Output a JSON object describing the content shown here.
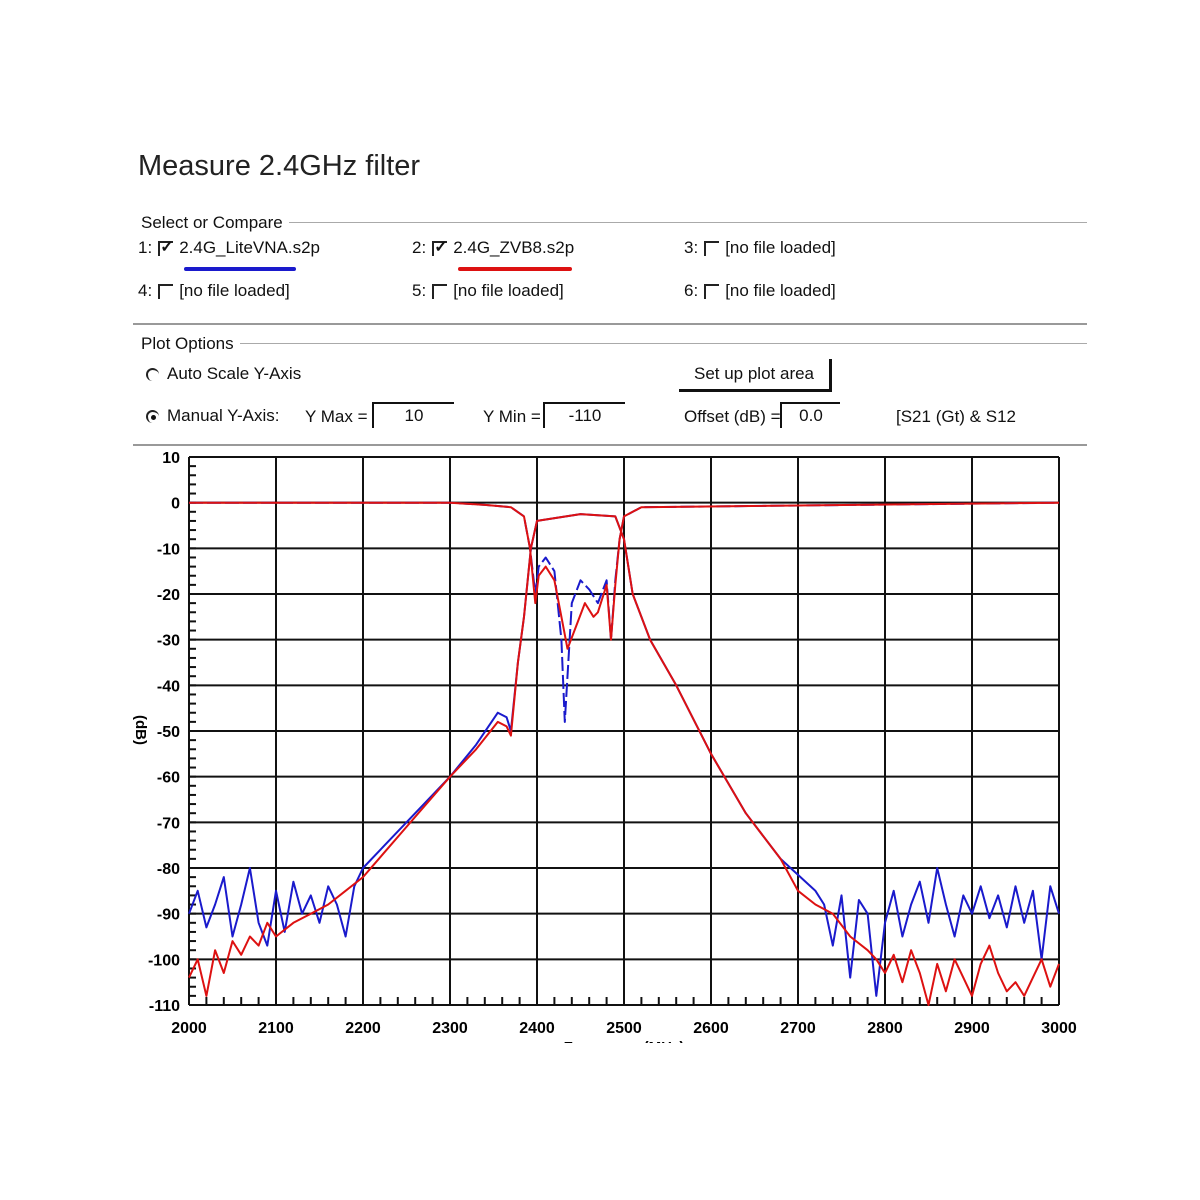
{
  "title": "Measure 2.4GHz filter",
  "select_group": {
    "label": "Select or Compare",
    "slots": [
      {
        "index": "1:",
        "checked": true,
        "file": "2.4G_LiteVNA.s2p",
        "color": "#1a1acc"
      },
      {
        "index": "2:",
        "checked": true,
        "file": "2.4G_ZVB8.s2p",
        "color": "#dd1111"
      },
      {
        "index": "3:",
        "checked": false,
        "file": "[no file loaded]"
      },
      {
        "index": "4:",
        "checked": false,
        "file": "[no file loaded]"
      },
      {
        "index": "5:",
        "checked": false,
        "file": "[no file loaded]"
      },
      {
        "index": "6:",
        "checked": false,
        "file": "[no file loaded]"
      }
    ]
  },
  "plot_options": {
    "label": "Plot Options",
    "auto_scale_label": "Auto Scale Y-Axis",
    "manual_label": "Manual Y-Axis:",
    "selected": "manual",
    "setup_button": "Set up plot area",
    "ymax_label": "Y Max =",
    "ymax_value": "10",
    "ymin_label": "Y Min =",
    "ymin_value": "-110",
    "offset_label": "Offset (dB) =",
    "offset_value": "0.0",
    "params_label": "[S21 (Gt) & S12"
  },
  "chart_data": {
    "type": "line",
    "xlabel": "Frequency (MHz)",
    "ylabel": "(dB)",
    "xlim": [
      2000,
      3000
    ],
    "ylim": [
      -110,
      10
    ],
    "xticks": [
      2000,
      2100,
      2200,
      2300,
      2400,
      2500,
      2600,
      2700,
      2800,
      2900,
      3000
    ],
    "yticks": [
      10,
      0,
      -10,
      -20,
      -30,
      -40,
      -50,
      -60,
      -70,
      -80,
      -90,
      -100,
      -110
    ],
    "grid": true,
    "series": [
      {
        "name": "2.4G_LiteVNA.s2p",
        "color": "#1a1acc",
        "x": [
          2000,
          2010,
          2020,
          2030,
          2040,
          2050,
          2060,
          2070,
          2080,
          2090,
          2100,
          2110,
          2120,
          2130,
          2140,
          2150,
          2160,
          2170,
          2180,
          2190,
          2200,
          2250,
          2300,
          2330,
          2355,
          2365,
          2370,
          2378,
          2385,
          2393,
          2400,
          2450,
          2490,
          2500,
          2510,
          2530,
          2560,
          2600,
          2640,
          2680,
          2720,
          2730,
          2740,
          2750,
          2760,
          2770,
          2780,
          2790,
          2800,
          2810,
          2820,
          2830,
          2840,
          2850,
          2860,
          2870,
          2880,
          2890,
          2900,
          2910,
          2920,
          2930,
          2940,
          2950,
          2960,
          2970,
          2980,
          2990,
          3000
        ],
        "y": [
          -90,
          -85,
          -93,
          -88,
          -82,
          -95,
          -88,
          -80,
          -92,
          -97,
          -85,
          -94,
          -83,
          -90,
          -86,
          -92,
          -84,
          -88,
          -95,
          -84,
          -80,
          -70,
          -60,
          -53,
          -46,
          -47,
          -50,
          -35,
          -25,
          -10,
          -4,
          -2.5,
          -3,
          -8,
          -20,
          -30,
          -40,
          -55,
          -68,
          -78,
          -85,
          -88,
          -97,
          -86,
          -104,
          -87,
          -90,
          -108,
          -92,
          -85,
          -95,
          -88,
          -83,
          -92,
          -80,
          -88,
          -95,
          -86,
          -90,
          -84,
          -91,
          -86,
          -93,
          -84,
          -92,
          -85,
          -100,
          -84,
          -90
        ]
      },
      {
        "name": "2.4G_ZVB8.s2p",
        "color": "#dd1111",
        "x": [
          2000,
          2010,
          2020,
          2030,
          2040,
          2050,
          2060,
          2070,
          2080,
          2090,
          2100,
          2120,
          2140,
          2160,
          2180,
          2200,
          2250,
          2300,
          2330,
          2355,
          2365,
          2370,
          2378,
          2385,
          2393,
          2400,
          2450,
          2490,
          2500,
          2510,
          2530,
          2560,
          2600,
          2640,
          2680,
          2700,
          2720,
          2740,
          2760,
          2780,
          2790,
          2800,
          2810,
          2820,
          2830,
          2840,
          2850,
          2860,
          2870,
          2880,
          2890,
          2900,
          2910,
          2920,
          2930,
          2940,
          2950,
          2960,
          2970,
          2980,
          2990,
          3000
        ],
        "y": [
          -104,
          -100,
          -108,
          -98,
          -103,
          -96,
          -99,
          -95,
          -97,
          -92,
          -95,
          -92,
          -90,
          -88,
          -85,
          -82,
          -71,
          -60,
          -54,
          -48,
          -49,
          -51,
          -35,
          -25,
          -10,
          -4,
          -2.5,
          -3,
          -8,
          -20,
          -30,
          -40,
          -55,
          -68,
          -78,
          -85,
          -88,
          -90,
          -95,
          -98,
          -100,
          -103,
          -99,
          -105,
          -98,
          -103,
          -110,
          -101,
          -107,
          -100,
          -104,
          -108,
          -101,
          -97,
          -103,
          -107,
          -105,
          -108,
          -104,
          -100,
          -106,
          -101
        ]
      },
      {
        "name": "2.4G_LiteVNA.s2p",
        "color": "#1a1acc",
        "x": [
          2000,
          2300,
          2340,
          2370,
          2385,
          2392,
          2398,
          2402,
          2410,
          2420,
          2428,
          2432,
          2440,
          2450,
          2460,
          2470,
          2480,
          2485,
          2490,
          2495,
          2500,
          2520,
          3000
        ],
        "y": [
          0,
          0,
          -0.5,
          -1,
          -3,
          -10,
          -20,
          -14,
          -12,
          -15,
          -30,
          -48,
          -22,
          -17,
          -19,
          -22,
          -17,
          -30,
          -17,
          -8,
          -3,
          -1,
          0
        ]
      },
      {
        "name": "2.4G_ZVB8.s2p",
        "color": "#dd1111",
        "x": [
          2000,
          2300,
          2340,
          2370,
          2385,
          2392,
          2398,
          2402,
          2410,
          2420,
          2428,
          2435,
          2445,
          2455,
          2465,
          2470,
          2480,
          2485,
          2490,
          2495,
          2500,
          2520,
          3000
        ],
        "y": [
          0,
          0,
          -0.5,
          -1,
          -3,
          -10,
          -22,
          -16,
          -14,
          -17,
          -25,
          -32,
          -27,
          -22,
          -25,
          -24,
          -18,
          -30,
          -18,
          -8,
          -3,
          -1,
          0
        ]
      }
    ]
  }
}
